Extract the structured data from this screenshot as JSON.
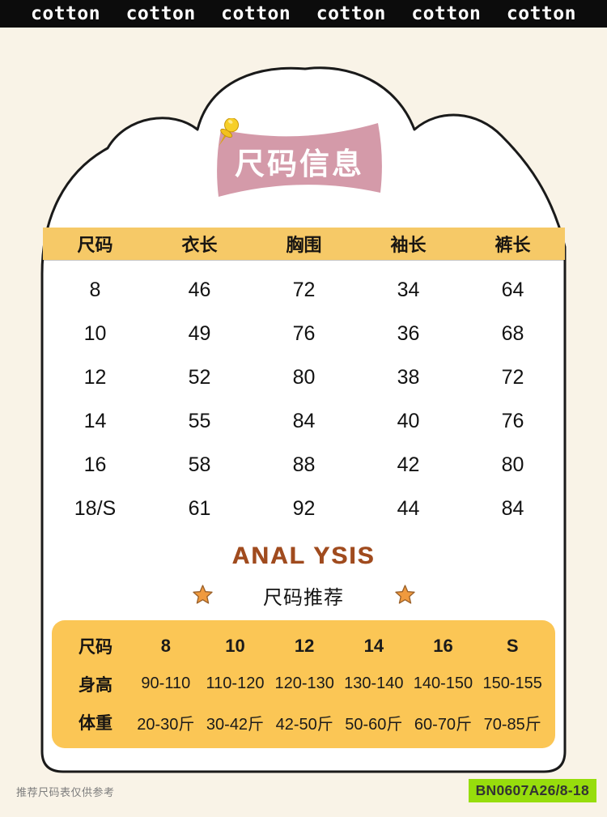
{
  "top_bar": {
    "items": [
      "cotton",
      "cotton",
      "cotton",
      "cotton",
      "cotton",
      "cotton"
    ]
  },
  "banner": {
    "title": "尺码信息",
    "pin_icon": "gold-pushpin"
  },
  "size_table": {
    "headers": [
      "尺码",
      "衣长",
      "胸围",
      "袖长",
      "裤长"
    ],
    "rows": [
      [
        "8",
        "46",
        "72",
        "34",
        "64"
      ],
      [
        "10",
        "49",
        "76",
        "36",
        "68"
      ],
      [
        "12",
        "52",
        "80",
        "38",
        "72"
      ],
      [
        "14",
        "55",
        "84",
        "40",
        "76"
      ],
      [
        "16",
        "58",
        "88",
        "42",
        "80"
      ],
      [
        "18/S",
        "61",
        "92",
        "44",
        "84"
      ]
    ]
  },
  "analysis": {
    "title": "ANAL YSIS",
    "subtitle": "尺码推荐",
    "star_icon": "orange-star"
  },
  "recommend_table": {
    "rows": [
      {
        "label": "尺码",
        "values": [
          "8",
          "10",
          "12",
          "14",
          "16",
          "S"
        ]
      },
      {
        "label": "身高",
        "values": [
          "90-110",
          "110-120",
          "120-130",
          "130-140",
          "140-150",
          "150-155"
        ]
      },
      {
        "label": "体重",
        "values": [
          "20-30斤",
          "30-42斤",
          "42-50斤",
          "50-60斤",
          "60-70斤",
          "70-85斤"
        ]
      }
    ]
  },
  "footer": {
    "note": "推荐尺码表仅供参考",
    "sku": "BN0607A26/8-18"
  },
  "colors": {
    "background": "#f9f3e7",
    "top_bar": "#0c0c0c",
    "card_fill": "#ffffff",
    "card_outline": "#1a1a1a",
    "banner_pink": "#d49aa9",
    "table_yellow_header": "#f6c967",
    "table_yellow_block": "#fbc655",
    "analysis_brown": "#a04b1e",
    "star_orange": "#f09a3e",
    "pin_gold": "#f7cf27",
    "sku_green": "#97dd0c"
  }
}
